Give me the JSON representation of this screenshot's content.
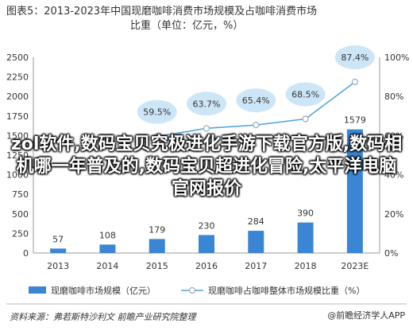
{
  "title_line1": "图表5：2013-2023年中国现磨咖啡消费市场规模及占咖啡消费市场",
  "title_line2": "比重（单位：亿元，%）",
  "source": "资料来源：弗若斯特沙利文 前瞻产业研究院整理",
  "brand": "@前瞻经济学人APP",
  "overlay_text": "zol软件,数码宝贝究极进化手游下载官方版,数码相机哪一年普及的,数码宝贝超进化冒险,太平洋电脑官网报价",
  "chart_data": {
    "type": "bar",
    "categories": [
      "2013",
      "2014",
      "2015",
      "2016",
      "2017",
      "2018",
      "2023E"
    ],
    "series": [
      {
        "name": "现磨咖啡市场规模（亿元）",
        "type": "bar",
        "axis": "left",
        "values": [
          57,
          108,
          179,
          230,
          284,
          390,
          1579
        ],
        "color": "#3a86d4"
      },
      {
        "name": "现磨咖啡占咖啡整体市场规模比重（%）",
        "type": "line",
        "axis": "right",
        "values": [
          null,
          null,
          59.5,
          63.7,
          65.4,
          68.5,
          87.4
        ],
        "color": "#4aa3e0"
      }
    ],
    "left_axis": {
      "ylim": [
        0,
        2500
      ],
      "ticks": [
        "0",
        "250",
        "500",
        "750",
        "1000",
        "1250",
        "1500",
        "1750",
        "2000",
        "2250",
        "2500"
      ]
    },
    "right_axis": {
      "ylim": [
        0,
        100
      ],
      "ticks": [
        "0%",
        "20%",
        "40%",
        "60%",
        "80%",
        "100%"
      ]
    },
    "legend_position": "bottom",
    "grid": false
  }
}
